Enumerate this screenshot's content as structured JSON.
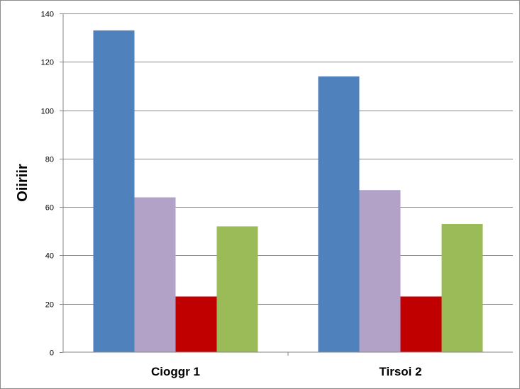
{
  "chart_data": {
    "type": "bar",
    "title": "",
    "xlabel": "",
    "ylabel": "Oiiriir",
    "categories": [
      "Cioggr 1",
      "Tirsoi 2"
    ],
    "series": [
      {
        "color": "#4f81bd",
        "values": [
          133,
          114
        ]
      },
      {
        "color": "#b3a2c7",
        "values": [
          64,
          67
        ]
      },
      {
        "color": "#c00000",
        "values": [
          23,
          23
        ]
      },
      {
        "color": "#9bbb59",
        "values": [
          52,
          53
        ]
      }
    ],
    "ylim": [
      0,
      140
    ],
    "yticks": [
      "0",
      "20",
      "40",
      "60",
      "80",
      "100",
      "120",
      "140"
    ],
    "grid": true,
    "legend": "none"
  }
}
